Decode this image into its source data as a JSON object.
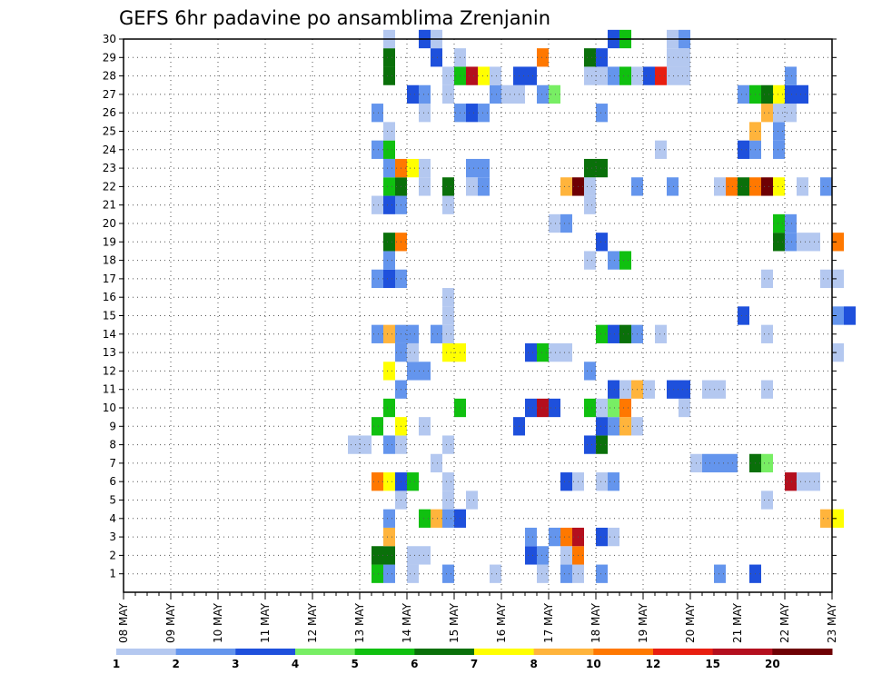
{
  "chart_data": {
    "type": "heatmap",
    "title": "GEFS 6hr padavine po ansamblima Zrenjanin",
    "xlabel": "",
    "ylabel": "",
    "x_step_hours": 6,
    "x_ticks": [
      "08 MAY",
      "09 MAY",
      "10 MAY",
      "11 MAY",
      "12 MAY",
      "13 MAY",
      "14 MAY",
      "15 MAY",
      "16 MAY",
      "17 MAY",
      "18 MAY",
      "19 MAY",
      "20 MAY",
      "21 MAY",
      "22 MAY",
      "23 MAY"
    ],
    "y_ticks": [
      1,
      2,
      3,
      4,
      5,
      6,
      7,
      8,
      9,
      10,
      11,
      12,
      13,
      14,
      15,
      16,
      17,
      18,
      19,
      20,
      21,
      22,
      23,
      24,
      25,
      26,
      27,
      28,
      29,
      30
    ],
    "ylim": [
      0,
      30
    ],
    "grid": true,
    "color_scale": {
      "labels": [
        "1",
        "2",
        "3",
        "4",
        "5",
        "6",
        "7",
        "8",
        "10",
        "12",
        "15",
        "20"
      ],
      "colors": [
        "#b4c8f0",
        "#6495ed",
        "#1e50dc",
        "#78ee64",
        "#10c010",
        "#0a700a",
        "#ffff00",
        "#ffb43c",
        "#ff7800",
        "#e81e10",
        "#b40f1e",
        "#6e0004"
      ]
    },
    "series": [
      {
        "member": 1,
        "cells": [
          [
            13.25,
            5
          ],
          [
            13.5,
            2
          ],
          [
            14.0,
            1
          ],
          [
            14.75,
            2
          ],
          [
            15.75,
            1
          ],
          [
            16.75,
            1
          ],
          [
            17.25,
            2
          ],
          [
            17.5,
            1
          ],
          [
            18.0,
            2
          ],
          [
            20.5,
            2
          ],
          [
            21.25,
            3
          ]
        ]
      },
      {
        "member": 2,
        "cells": [
          [
            13.25,
            6
          ],
          [
            13.5,
            6
          ],
          [
            14.0,
            1
          ],
          [
            14.25,
            1
          ],
          [
            16.5,
            3
          ],
          [
            16.75,
            2
          ],
          [
            17.25,
            1
          ],
          [
            17.5,
            10
          ]
        ]
      },
      {
        "member": 3,
        "cells": [
          [
            13.5,
            8
          ],
          [
            16.5,
            2
          ],
          [
            17.0,
            2
          ],
          [
            17.25,
            10
          ],
          [
            17.5,
            15
          ],
          [
            18.0,
            3
          ],
          [
            18.25,
            1
          ]
        ]
      },
      {
        "member": 4,
        "cells": [
          [
            13.5,
            2
          ],
          [
            14.25,
            5
          ],
          [
            14.5,
            8
          ],
          [
            14.75,
            2
          ],
          [
            15.0,
            3
          ],
          [
            22.75,
            8
          ],
          [
            23.0,
            7
          ]
        ]
      },
      {
        "member": 5,
        "cells": [
          [
            13.75,
            1
          ],
          [
            14.75,
            1
          ],
          [
            15.25,
            1
          ],
          [
            21.5,
            1
          ]
        ]
      },
      {
        "member": 6,
        "cells": [
          [
            13.25,
            10
          ],
          [
            13.5,
            7
          ],
          [
            13.75,
            3
          ],
          [
            14.0,
            5
          ],
          [
            14.75,
            1
          ],
          [
            17.25,
            3
          ],
          [
            17.5,
            1
          ],
          [
            18.0,
            1
          ],
          [
            18.25,
            2
          ],
          [
            22.0,
            15
          ],
          [
            22.25,
            1
          ],
          [
            22.5,
            1
          ]
        ]
      },
      {
        "member": 7,
        "cells": [
          [
            14.5,
            1
          ],
          [
            20.0,
            1
          ],
          [
            20.25,
            2
          ],
          [
            20.5,
            2
          ],
          [
            20.75,
            2
          ],
          [
            21.25,
            6
          ],
          [
            21.5,
            4
          ]
        ]
      },
      {
        "member": 8,
        "cells": [
          [
            12.75,
            1
          ],
          [
            13.0,
            1
          ],
          [
            13.5,
            2
          ],
          [
            13.75,
            1
          ],
          [
            14.75,
            1
          ],
          [
            17.75,
            3
          ],
          [
            18.0,
            6
          ]
        ]
      },
      {
        "member": 9,
        "cells": [
          [
            13.25,
            5
          ],
          [
            13.75,
            7
          ],
          [
            14.25,
            1
          ],
          [
            16.25,
            3
          ],
          [
            18.0,
            3
          ],
          [
            18.25,
            2
          ],
          [
            18.5,
            8
          ],
          [
            18.75,
            1
          ]
        ]
      },
      {
        "member": 10,
        "cells": [
          [
            13.5,
            5
          ],
          [
            15.0,
            5
          ],
          [
            16.5,
            3
          ],
          [
            16.75,
            15
          ],
          [
            17.0,
            3
          ],
          [
            17.75,
            5
          ],
          [
            18.0,
            1
          ],
          [
            18.25,
            4
          ],
          [
            18.5,
            10
          ],
          [
            19.75,
            1
          ]
        ]
      },
      {
        "member": 11,
        "cells": [
          [
            13.75,
            2
          ],
          [
            18.25,
            3
          ],
          [
            18.5,
            1
          ],
          [
            18.75,
            8
          ],
          [
            19.0,
            1
          ],
          [
            19.5,
            3
          ],
          [
            19.75,
            3
          ],
          [
            20.25,
            1
          ],
          [
            20.5,
            1
          ],
          [
            21.5,
            1
          ]
        ]
      },
      {
        "member": 12,
        "cells": [
          [
            13.5,
            7
          ],
          [
            14.0,
            2
          ],
          [
            14.25,
            2
          ],
          [
            17.75,
            2
          ]
        ]
      },
      {
        "member": 13,
        "cells": [
          [
            13.75,
            2
          ],
          [
            14.0,
            1
          ],
          [
            14.75,
            7
          ],
          [
            15.0,
            7
          ],
          [
            16.5,
            3
          ],
          [
            16.75,
            5
          ],
          [
            17.0,
            1
          ],
          [
            17.25,
            1
          ],
          [
            23.0,
            1
          ]
        ]
      },
      {
        "member": 14,
        "cells": [
          [
            13.25,
            2
          ],
          [
            13.5,
            8
          ],
          [
            13.75,
            2
          ],
          [
            14.0,
            2
          ],
          [
            14.5,
            2
          ],
          [
            14.75,
            1
          ],
          [
            18.0,
            5
          ],
          [
            18.25,
            3
          ],
          [
            18.5,
            6
          ],
          [
            18.75,
            2
          ],
          [
            19.25,
            1
          ],
          [
            21.5,
            1
          ]
        ]
      },
      {
        "member": 15,
        "cells": [
          [
            14.75,
            1
          ],
          [
            21.0,
            3
          ],
          [
            23.0,
            2
          ],
          [
            23.25,
            3
          ]
        ]
      },
      {
        "member": 16,
        "cells": [
          [
            14.75,
            1
          ]
        ]
      },
      {
        "member": 17,
        "cells": [
          [
            13.25,
            2
          ],
          [
            13.5,
            3
          ],
          [
            13.75,
            2
          ],
          [
            21.5,
            1
          ],
          [
            22.75,
            1
          ],
          [
            23.0,
            1
          ]
        ]
      },
      {
        "member": 18,
        "cells": [
          [
            13.5,
            2
          ],
          [
            17.75,
            1
          ],
          [
            18.25,
            2
          ],
          [
            18.5,
            5
          ]
        ]
      },
      {
        "member": 19,
        "cells": [
          [
            13.5,
            6
          ],
          [
            13.75,
            10
          ],
          [
            18.0,
            3
          ],
          [
            21.75,
            6
          ],
          [
            22.0,
            2
          ],
          [
            22.25,
            1
          ],
          [
            22.5,
            1
          ],
          [
            23.0,
            10
          ]
        ]
      },
      {
        "member": 20,
        "cells": [
          [
            17.0,
            1
          ],
          [
            17.25,
            2
          ],
          [
            21.75,
            5
          ],
          [
            22.0,
            2
          ]
        ]
      },
      {
        "member": 21,
        "cells": [
          [
            13.25,
            1
          ],
          [
            13.5,
            3
          ],
          [
            13.75,
            2
          ],
          [
            14.75,
            1
          ],
          [
            17.75,
            1
          ]
        ]
      },
      {
        "member": 22,
        "cells": [
          [
            13.5,
            5
          ],
          [
            13.75,
            6
          ],
          [
            14.25,
            1
          ],
          [
            14.75,
            6
          ],
          [
            15.25,
            1
          ],
          [
            15.5,
            2
          ],
          [
            17.25,
            8
          ],
          [
            17.5,
            20
          ],
          [
            17.75,
            1
          ],
          [
            18.75,
            2
          ],
          [
            19.5,
            2
          ],
          [
            20.5,
            1
          ],
          [
            20.75,
            10
          ],
          [
            21.0,
            6
          ],
          [
            21.25,
            10
          ],
          [
            21.5,
            20
          ],
          [
            21.75,
            7
          ],
          [
            22.25,
            1
          ],
          [
            22.75,
            2
          ]
        ]
      },
      {
        "member": 23,
        "cells": [
          [
            13.5,
            2
          ],
          [
            13.75,
            10
          ],
          [
            14.0,
            7
          ],
          [
            14.25,
            1
          ],
          [
            15.25,
            2
          ],
          [
            15.5,
            2
          ],
          [
            17.75,
            6
          ],
          [
            18.0,
            6
          ]
        ]
      },
      {
        "member": 24,
        "cells": [
          [
            13.25,
            2
          ],
          [
            13.5,
            5
          ],
          [
            19.25,
            1
          ],
          [
            21.0,
            3
          ],
          [
            21.25,
            2
          ],
          [
            21.75,
            2
          ]
        ]
      },
      {
        "member": 25,
        "cells": [
          [
            13.5,
            1
          ],
          [
            21.25,
            8
          ],
          [
            21.75,
            2
          ]
        ]
      },
      {
        "member": 26,
        "cells": [
          [
            13.25,
            2
          ],
          [
            14.25,
            1
          ],
          [
            15.0,
            2
          ],
          [
            15.25,
            3
          ],
          [
            15.5,
            2
          ],
          [
            18.0,
            2
          ],
          [
            21.5,
            8
          ],
          [
            21.75,
            1
          ],
          [
            22.0,
            1
          ]
        ]
      },
      {
        "member": 27,
        "cells": [
          [
            14.0,
            3
          ],
          [
            14.25,
            2
          ],
          [
            14.75,
            1
          ],
          [
            15.75,
            2
          ],
          [
            16.0,
            1
          ],
          [
            16.25,
            1
          ],
          [
            16.75,
            2
          ],
          [
            17.0,
            4
          ],
          [
            21.0,
            2
          ],
          [
            21.25,
            5
          ],
          [
            21.5,
            6
          ],
          [
            21.75,
            7
          ],
          [
            22.0,
            3
          ],
          [
            22.25,
            3
          ]
        ]
      },
      {
        "member": 28,
        "cells": [
          [
            13.5,
            6
          ],
          [
            14.75,
            1
          ],
          [
            15.0,
            5
          ],
          [
            15.25,
            15
          ],
          [
            15.5,
            7
          ],
          [
            15.75,
            1
          ],
          [
            16.25,
            3
          ],
          [
            16.5,
            3
          ],
          [
            17.75,
            1
          ],
          [
            18.0,
            1
          ],
          [
            18.25,
            2
          ],
          [
            18.5,
            5
          ],
          [
            18.75,
            1
          ],
          [
            19.0,
            3
          ],
          [
            19.25,
            12
          ],
          [
            19.5,
            1
          ],
          [
            19.75,
            1
          ],
          [
            22.0,
            2
          ]
        ]
      },
      {
        "member": 29,
        "cells": [
          [
            13.5,
            6
          ],
          [
            14.5,
            3
          ],
          [
            15.0,
            1
          ],
          [
            16.75,
            10
          ],
          [
            17.75,
            6
          ],
          [
            18.0,
            3
          ],
          [
            19.5,
            1
          ],
          [
            19.75,
            1
          ]
        ]
      },
      {
        "member": 30,
        "cells": [
          [
            13.5,
            1
          ],
          [
            14.25,
            3
          ],
          [
            14.5,
            1
          ],
          [
            18.25,
            3
          ],
          [
            18.5,
            5
          ],
          [
            19.5,
            1
          ],
          [
            19.75,
            2
          ]
        ]
      }
    ]
  }
}
